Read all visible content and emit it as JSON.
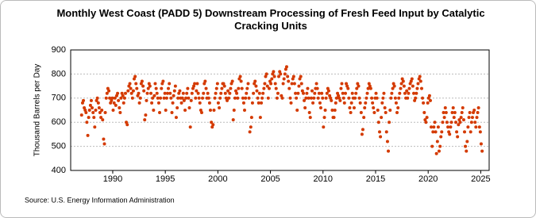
{
  "chart_data": {
    "type": "scatter",
    "title": "Monthly West Coast (PADD 5) Downstream Processing of Fresh Feed Input by Catalytic Cracking Units",
    "y_label": "Thousand Barrels per Day",
    "source": "Source: U.S. Energy Information Administration",
    "color": "#d43a00",
    "grid": true,
    "xlim": [
      1986,
      2025.8
    ],
    "xticks": [
      1990,
      1995,
      2000,
      2005,
      2010,
      2015,
      2020,
      2025
    ],
    "ylim": [
      400,
      900
    ],
    "yticks": [
      400,
      500,
      600,
      700,
      800,
      900
    ],
    "x": [
      1987.04,
      1987.13,
      1987.21,
      1987.29,
      1987.38,
      1987.46,
      1987.54,
      1987.63,
      1987.71,
      1987.79,
      1987.88,
      1987.96,
      1988.04,
      1988.13,
      1988.21,
      1988.29,
      1988.38,
      1988.46,
      1988.54,
      1988.63,
      1988.71,
      1988.79,
      1988.88,
      1988.96,
      1989.04,
      1989.13,
      1989.21,
      1989.29,
      1989.38,
      1989.46,
      1989.54,
      1989.63,
      1989.71,
      1989.79,
      1989.88,
      1989.96,
      1990.04,
      1990.13,
      1990.21,
      1990.29,
      1990.38,
      1990.46,
      1990.54,
      1990.63,
      1990.71,
      1990.79,
      1990.88,
      1990.96,
      1991.04,
      1991.13,
      1991.21,
      1991.29,
      1991.38,
      1991.46,
      1991.54,
      1991.63,
      1991.71,
      1991.79,
      1991.88,
      1991.96,
      1992.04,
      1992.13,
      1992.21,
      1992.29,
      1992.38,
      1992.46,
      1992.54,
      1992.63,
      1992.71,
      1992.79,
      1992.88,
      1992.96,
      1993.04,
      1993.13,
      1993.21,
      1993.29,
      1993.38,
      1993.46,
      1993.54,
      1993.63,
      1993.71,
      1993.79,
      1993.88,
      1993.96,
      1994.04,
      1994.13,
      1994.21,
      1994.29,
      1994.38,
      1994.46,
      1994.54,
      1994.63,
      1994.71,
      1994.79,
      1994.88,
      1994.96,
      1995.04,
      1995.13,
      1995.21,
      1995.29,
      1995.38,
      1995.46,
      1995.54,
      1995.63,
      1995.71,
      1995.79,
      1995.88,
      1995.96,
      1996.04,
      1996.13,
      1996.21,
      1996.29,
      1996.38,
      1996.46,
      1996.54,
      1996.63,
      1996.71,
      1996.79,
      1996.88,
      1996.96,
      1997.04,
      1997.13,
      1997.21,
      1997.29,
      1997.38,
      1997.46,
      1997.54,
      1997.63,
      1997.71,
      1997.79,
      1997.88,
      1997.96,
      1998.04,
      1998.13,
      1998.21,
      1998.29,
      1998.38,
      1998.46,
      1998.54,
      1998.63,
      1998.71,
      1998.79,
      1998.88,
      1998.96,
      1999.04,
      1999.13,
      1999.21,
      1999.29,
      1999.38,
      1999.46,
      1999.54,
      1999.63,
      1999.71,
      1999.79,
      1999.88,
      1999.96,
      2000.04,
      2000.13,
      2000.21,
      2000.29,
      2000.38,
      2000.46,
      2000.54,
      2000.63,
      2000.71,
      2000.79,
      2000.88,
      2000.96,
      2001.04,
      2001.13,
      2001.21,
      2001.29,
      2001.38,
      2001.46,
      2001.54,
      2001.63,
      2001.71,
      2001.79,
      2001.88,
      2001.96,
      2002.04,
      2002.13,
      2002.21,
      2002.29,
      2002.38,
      2002.46,
      2002.54,
      2002.63,
      2002.71,
      2002.79,
      2002.88,
      2002.96,
      2003.04,
      2003.13,
      2003.21,
      2003.29,
      2003.38,
      2003.46,
      2003.54,
      2003.63,
      2003.71,
      2003.79,
      2003.88,
      2003.96,
      2004.04,
      2004.13,
      2004.21,
      2004.29,
      2004.38,
      2004.46,
      2004.54,
      2004.63,
      2004.71,
      2004.79,
      2004.88,
      2004.96,
      2005.04,
      2005.13,
      2005.21,
      2005.29,
      2005.38,
      2005.46,
      2005.54,
      2005.63,
      2005.71,
      2005.79,
      2005.88,
      2005.96,
      2006.04,
      2006.13,
      2006.21,
      2006.29,
      2006.38,
      2006.46,
      2006.54,
      2006.63,
      2006.71,
      2006.79,
      2006.88,
      2006.96,
      2007.04,
      2007.13,
      2007.21,
      2007.29,
      2007.38,
      2007.46,
      2007.54,
      2007.63,
      2007.71,
      2007.79,
      2007.88,
      2007.96,
      2008.04,
      2008.13,
      2008.21,
      2008.29,
      2008.38,
      2008.46,
      2008.54,
      2008.63,
      2008.71,
      2008.79,
      2008.88,
      2008.96,
      2009.04,
      2009.13,
      2009.21,
      2009.29,
      2009.38,
      2009.46,
      2009.54,
      2009.63,
      2009.71,
      2009.79,
      2009.88,
      2009.96,
      2010.04,
      2010.13,
      2010.21,
      2010.29,
      2010.38,
      2010.46,
      2010.54,
      2010.63,
      2010.71,
      2010.79,
      2010.88,
      2010.96,
      2011.04,
      2011.13,
      2011.21,
      2011.29,
      2011.38,
      2011.46,
      2011.54,
      2011.63,
      2011.71,
      2011.79,
      2011.88,
      2011.96,
      2012.04,
      2012.13,
      2012.21,
      2012.29,
      2012.38,
      2012.46,
      2012.54,
      2012.63,
      2012.71,
      2012.79,
      2012.88,
      2012.96,
      2013.04,
      2013.13,
      2013.21,
      2013.29,
      2013.38,
      2013.46,
      2013.54,
      2013.63,
      2013.71,
      2013.79,
      2013.88,
      2013.96,
      2014.04,
      2014.13,
      2014.21,
      2014.29,
      2014.38,
      2014.46,
      2014.54,
      2014.63,
      2014.71,
      2014.79,
      2014.88,
      2014.96,
      2015.04,
      2015.13,
      2015.21,
      2015.29,
      2015.38,
      2015.46,
      2015.54,
      2015.63,
      2015.71,
      2015.79,
      2015.88,
      2015.96,
      2016.04,
      2016.13,
      2016.21,
      2016.29,
      2016.38,
      2016.46,
      2016.54,
      2016.63,
      2016.71,
      2016.79,
      2016.88,
      2016.96,
      2017.04,
      2017.13,
      2017.21,
      2017.29,
      2017.38,
      2017.46,
      2017.54,
      2017.63,
      2017.71,
      2017.79,
      2017.88,
      2017.96,
      2018.04,
      2018.13,
      2018.21,
      2018.29,
      2018.38,
      2018.46,
      2018.54,
      2018.63,
      2018.71,
      2018.79,
      2018.88,
      2018.96,
      2019.04,
      2019.13,
      2019.21,
      2019.29,
      2019.38,
      2019.46,
      2019.54,
      2019.63,
      2019.71,
      2019.79,
      2019.88,
      2019.96,
      2020.04,
      2020.13,
      2020.21,
      2020.29,
      2020.38,
      2020.46,
      2020.54,
      2020.63,
      2020.71,
      2020.79,
      2020.88,
      2020.96,
      2021.04,
      2021.13,
      2021.21,
      2021.29,
      2021.38,
      2021.46,
      2021.54,
      2021.63,
      2021.71,
      2021.79,
      2021.88,
      2021.96,
      2022.04,
      2022.13,
      2022.21,
      2022.29,
      2022.38,
      2022.46,
      2022.54,
      2022.63,
      2022.71,
      2022.79,
      2022.88,
      2022.96,
      2023.04,
      2023.13,
      2023.21,
      2023.29,
      2023.38,
      2023.46,
      2023.54,
      2023.63,
      2023.71,
      2023.79,
      2023.88,
      2023.96,
      2024.04,
      2024.13,
      2024.21,
      2024.29,
      2024.38,
      2024.46,
      2024.54,
      2024.63,
      2024.71,
      2024.79,
      2024.88,
      2024.96,
      2025.04,
      2025.13
    ],
    "values": [
      630,
      680,
      690,
      660,
      650,
      640,
      600,
      545,
      620,
      650,
      670,
      690,
      660,
      640,
      620,
      580,
      650,
      690,
      700,
      680,
      660,
      640,
      620,
      650,
      610,
      530,
      510,
      640,
      700,
      720,
      740,
      730,
      700,
      680,
      690,
      700,
      650,
      680,
      700,
      670,
      710,
      720,
      690,
      660,
      640,
      700,
      720,
      710,
      680,
      700,
      720,
      600,
      590,
      730,
      750,
      760,
      740,
      720,
      700,
      730,
      780,
      790,
      760,
      740,
      710,
      720,
      680,
      700,
      760,
      770,
      750,
      730,
      610,
      630,
      690,
      720,
      740,
      760,
      750,
      720,
      680,
      700,
      650,
      710,
      760,
      740,
      720,
      700,
      680,
      640,
      700,
      740,
      760,
      770,
      700,
      720,
      650,
      700,
      720,
      740,
      760,
      720,
      700,
      640,
      680,
      710,
      730,
      750,
      620,
      660,
      700,
      720,
      730,
      700,
      680,
      700,
      720,
      690,
      650,
      700,
      720,
      740,
      700,
      660,
      580,
      690,
      720,
      740,
      750,
      760,
      700,
      730,
      760,
      720,
      700,
      680,
      650,
      640,
      700,
      720,
      760,
      770,
      740,
      700,
      720,
      700,
      680,
      650,
      600,
      580,
      590,
      650,
      700,
      720,
      740,
      760,
      680,
      660,
      700,
      720,
      740,
      760,
      760,
      750,
      720,
      700,
      690,
      730,
      700,
      720,
      740,
      760,
      770,
      610,
      650,
      700,
      730,
      720,
      700,
      740,
      780,
      790,
      770,
      740,
      700,
      680,
      650,
      700,
      720,
      740,
      760,
      700,
      560,
      580,
      620,
      680,
      720,
      760,
      770,
      750,
      730,
      700,
      680,
      720,
      620,
      680,
      700,
      720,
      740,
      760,
      790,
      800,
      750,
      700,
      740,
      770,
      760,
      780,
      800,
      810,
      790,
      760,
      740,
      700,
      720,
      790,
      810,
      800,
      710,
      700,
      760,
      780,
      800,
      820,
      830,
      790,
      770,
      740,
      700,
      680,
      760,
      780,
      790,
      760,
      720,
      700,
      650,
      720,
      750,
      780,
      790,
      760,
      730,
      720,
      690,
      660,
      700,
      720,
      740,
      700,
      640,
      620,
      700,
      730,
      680,
      700,
      720,
      740,
      760,
      740,
      700,
      720,
      680,
      660,
      720,
      700,
      580,
      620,
      650,
      700,
      720,
      740,
      730,
      710,
      700,
      690,
      650,
      620,
      620,
      650,
      680,
      700,
      720,
      710,
      700,
      690,
      740,
      760,
      720,
      700,
      680,
      720,
      760,
      750,
      740,
      700,
      660,
      640,
      680,
      720,
      700,
      660,
      700,
      720,
      740,
      760,
      750,
      700,
      680,
      640,
      550,
      570,
      620,
      660,
      680,
      700,
      720,
      740,
      760,
      750,
      740,
      700,
      680,
      660,
      640,
      700,
      720,
      700,
      650,
      600,
      560,
      540,
      620,
      680,
      700,
      720,
      660,
      640,
      560,
      520,
      480,
      600,
      650,
      700,
      720,
      740,
      760,
      750,
      700,
      680,
      640,
      660,
      700,
      720,
      740,
      760,
      780,
      770,
      750,
      720,
      700,
      730,
      700,
      720,
      740,
      760,
      770,
      780,
      750,
      720,
      690,
      700,
      720,
      740,
      760,
      780,
      790,
      770,
      740,
      700,
      680,
      640,
      610,
      600,
      620,
      680,
      700,
      710,
      690,
      580,
      500,
      560,
      580,
      600,
      560,
      470,
      520,
      580,
      480,
      500,
      540,
      560,
      600,
      640,
      620,
      660,
      640,
      600,
      580,
      560,
      550,
      580,
      600,
      640,
      660,
      620,
      640,
      600,
      560,
      540,
      590,
      610,
      600,
      620,
      640,
      660,
      610,
      560,
      500,
      480,
      520,
      580,
      620,
      640,
      560,
      600,
      620,
      640,
      650,
      600,
      580,
      620,
      640,
      660,
      580,
      560,
      510,
      480
    ]
  }
}
